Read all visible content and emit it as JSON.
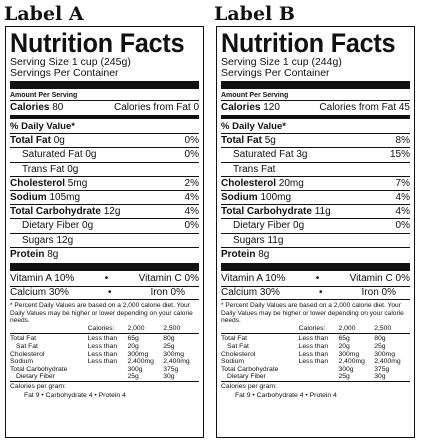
{
  "captions": [
    "Label A",
    "Label B"
  ],
  "common": {
    "title": "Nutrition Facts",
    "servings_per_container": "Servings Per Container",
    "amount_per_serving": "Amount Per Serving",
    "calories": "Calories",
    "calories_from_fat": "Calories from Fat",
    "daily_value_header": "% Daily Value*",
    "total_fat": "Total Fat",
    "saturated_fat": "Saturated Fat",
    "trans_fat": "Trans Fat",
    "cholesterol": "Cholesterol",
    "sodium": "Sodium",
    "total_carb": "Total Carbohydrate",
    "dietary_fiber": "Dietary Fiber",
    "sugars": "Sugars",
    "protein": "Protein",
    "vitamin_a": "Vitamin A",
    "vitamin_c": "Vitamin C",
    "calcium": "Calcium",
    "iron": "Iron",
    "bullet": "•",
    "footnote": "* Percent Daily Values are based on a 2,000 calorie diet. Your Daily Values may be higher or lower depending on your calorie needs.",
    "table_header": [
      "",
      "Calories:",
      "2,000",
      "2,500"
    ],
    "table_rows": [
      [
        "Total Fat",
        "Less than",
        "65g",
        "80g"
      ],
      [
        "Sat Fat",
        "Less than",
        "20g",
        "25g"
      ],
      [
        "Cholesterol",
        "Less than",
        "300mg",
        "300mg"
      ],
      [
        "Sodium",
        "Less than",
        "2,400mg",
        "2,400mg"
      ],
      [
        "Total Carbohydrate",
        "",
        "300g",
        "375g"
      ],
      [
        "Dietary Fiber",
        "",
        "25g",
        "30g"
      ]
    ],
    "calories_per_gram": "Calories per gram:",
    "per_gram_line": "Fat 9  •  Carbohydrate 4  •  Protein 4"
  },
  "labels": [
    {
      "serving_size": "Serving Size 1 cup (245g)",
      "calories": "80",
      "calories_from_fat": "0",
      "total_fat": "0g",
      "total_fat_dv": "0%",
      "saturated_fat": "0g",
      "saturated_fat_dv": "0%",
      "trans_fat": "0g",
      "cholesterol": "5mg",
      "cholesterol_dv": "2%",
      "sodium": "105mg",
      "sodium_dv": "4%",
      "total_carb": "12g",
      "total_carb_dv": "4%",
      "dietary_fiber": "0g",
      "dietary_fiber_dv": "0%",
      "sugars": "12g",
      "protein": "8g",
      "vitamin_a": "10%",
      "vitamin_c": "0%",
      "calcium": "30%",
      "iron": "0%"
    },
    {
      "serving_size": "Serving Size 1 cup (244g)",
      "calories": "120",
      "calories_from_fat": "45",
      "total_fat": "5g",
      "total_fat_dv": "8%",
      "saturated_fat": "3g",
      "saturated_fat_dv": "15%",
      "trans_fat": "",
      "cholesterol": "20mg",
      "cholesterol_dv": "7%",
      "sodium": "100mg",
      "sodium_dv": "4%",
      "total_carb": "11g",
      "total_carb_dv": "4%",
      "dietary_fiber": "0g",
      "dietary_fiber_dv": "0%",
      "sugars": "11g",
      "protein": "8g",
      "vitamin_a": "10%",
      "vitamin_c": "0%",
      "calcium": "30%",
      "iron": "0%"
    }
  ]
}
